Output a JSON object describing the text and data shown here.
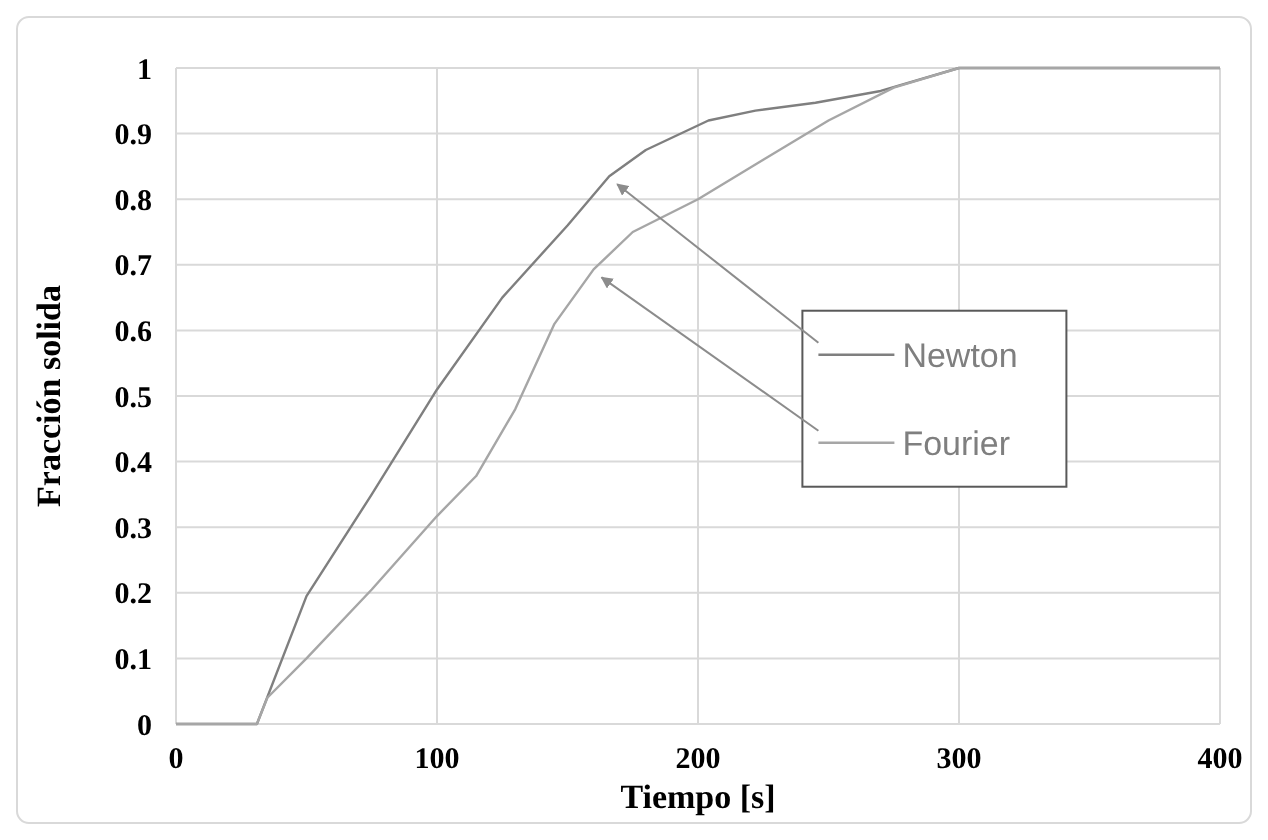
{
  "chart_data": {
    "type": "line",
    "xlabel": "Tiempo [s]",
    "ylabel": "Fracción solida",
    "xlim": [
      0,
      400
    ],
    "xticks": [
      0,
      100,
      200,
      300,
      400
    ],
    "ylim": [
      0,
      1
    ],
    "yticks": [
      0,
      0.1,
      0.2,
      0.3,
      0.4,
      0.5,
      0.6,
      0.7,
      0.8,
      0.9,
      1
    ],
    "grid": true,
    "legend": "right",
    "line_style": "solid",
    "series": [
      {
        "name": "Newton",
        "color": "#7f7f7f",
        "x": [
          0,
          31,
          50,
          75,
          100,
          125,
          150,
          166,
          180,
          204,
          222,
          245,
          270,
          300,
          400
        ],
        "values": [
          0,
          0,
          0.195,
          0.35,
          0.51,
          0.65,
          0.76,
          0.835,
          0.875,
          0.92,
          0.935,
          0.947,
          0.965,
          1,
          1
        ]
      },
      {
        "name": "Fourier",
        "color": "#a6a6a6",
        "x": [
          0,
          31,
          35,
          50,
          75,
          100,
          115,
          130,
          145,
          160,
          175,
          200,
          225,
          250,
          275,
          300,
          400
        ],
        "values": [
          0,
          0,
          0.04,
          0.1,
          0.205,
          0.317,
          0.378,
          0.48,
          0.61,
          0.693,
          0.75,
          0.8,
          0.86,
          0.92,
          0.97,
          1,
          1
        ]
      }
    ]
  }
}
